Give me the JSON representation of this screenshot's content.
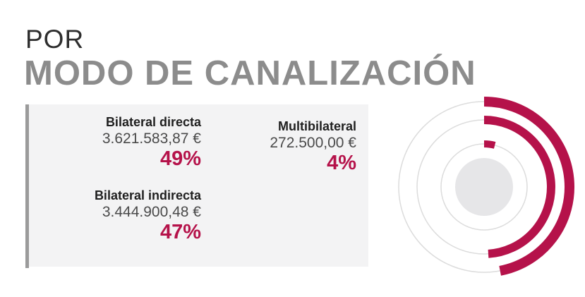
{
  "header": {
    "eyebrow": "POR",
    "title": "MODO DE CANALIZACIÓN"
  },
  "colors": {
    "accent": "#b5124a",
    "ring": "#dcdcdc",
    "center": "#e6e6e8",
    "panel": "#f3f3f4",
    "title": "#8c8c8c"
  },
  "entries": [
    {
      "label": "Bilateral directa",
      "amount": "3.621.583,87 €",
      "percent": "49%"
    },
    {
      "label": "Multibilateral",
      "amount": "272.500,00 €",
      "percent": "4%"
    },
    {
      "label": "Bilateral indirecta",
      "amount": "3.444.900,48 €",
      "percent": "47%"
    }
  ],
  "chart_data": {
    "type": "radial-bar",
    "categories": [
      "Bilateral indirecta",
      "Bilateral directa",
      "Multibilateral"
    ],
    "values": [
      47,
      49,
      4
    ],
    "unit": "%",
    "amounts": [
      3444900.48,
      3621583.87,
      272500.0
    ],
    "currency": "€",
    "grid": true
  }
}
